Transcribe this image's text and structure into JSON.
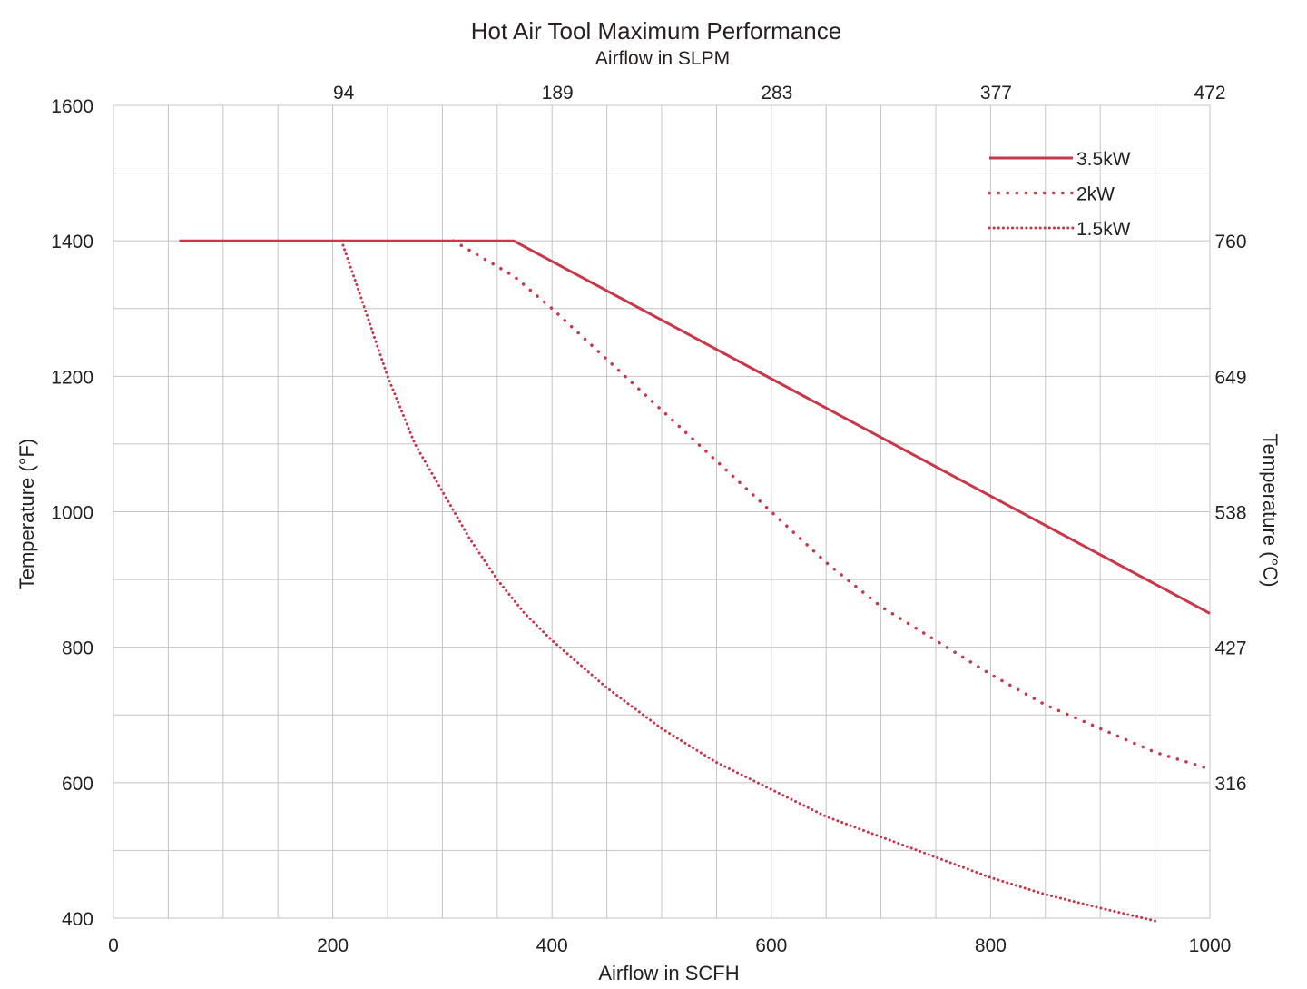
{
  "chart_data": {
    "type": "line",
    "title": "Hot Air Tool Maximum Performance",
    "subtitle": "Airflow in SLPM",
    "xlabel": "Airflow in SCFH",
    "ylabel": "Temperature (°F)",
    "y2label": "Temperature (°C)",
    "xlim": [
      0,
      1000
    ],
    "ylim": [
      400,
      1600
    ],
    "x_ticks": [
      "0",
      "200",
      "400",
      "600",
      "800",
      "1000"
    ],
    "x_tick_values": [
      0,
      200,
      400,
      600,
      800,
      1000
    ],
    "y_ticks": [
      "400",
      "600",
      "800",
      "1000",
      "1200",
      "1400",
      "1600"
    ],
    "y_tick_values": [
      400,
      600,
      800,
      1000,
      1200,
      1400,
      1600
    ],
    "top_ticks": [
      "94",
      "189",
      "283",
      "377",
      "472"
    ],
    "top_tick_x": [
      210,
      405,
      605,
      805,
      1000
    ],
    "right_ticks": [
      "760",
      "649",
      "538",
      "427",
      "316"
    ],
    "right_tick_y": [
      1400,
      1200,
      1000,
      800,
      600
    ],
    "grid": true,
    "x_grid_step": 50,
    "y_grid_step": 100,
    "legend_position": "top-right",
    "color": "#c8374a",
    "series": [
      {
        "name": "3.5kW",
        "style": "solid",
        "x": [
          60,
          365,
          1000
        ],
        "y": [
          1400,
          1400,
          850
        ]
      },
      {
        "name": "2kW",
        "style": "dotted",
        "x": [
          310,
          365,
          400,
          450,
          500,
          550,
          600,
          650,
          700,
          750,
          800,
          850,
          900,
          950,
          1000
        ],
        "y": [
          1400,
          1348,
          1300,
          1225,
          1150,
          1075,
          1000,
          925,
          860,
          810,
          760,
          715,
          680,
          645,
          620
        ]
      },
      {
        "name": "1.5kW",
        "style": "dotted",
        "x": [
          208,
          225,
          250,
          275,
          300,
          325,
          350,
          375,
          400,
          450,
          500,
          550,
          600,
          650,
          700,
          750,
          800,
          850,
          900,
          950
        ],
        "y": [
          1400,
          1320,
          1200,
          1100,
          1030,
          960,
          900,
          850,
          810,
          740,
          680,
          630,
          590,
          550,
          520,
          490,
          460,
          435,
          415,
          396
        ]
      }
    ]
  }
}
